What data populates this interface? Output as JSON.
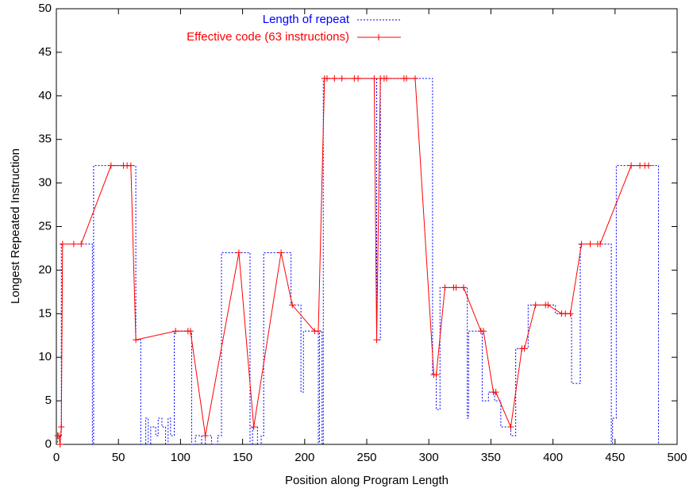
{
  "chart_data": {
    "type": "line",
    "xlabel": "Position along Program Length",
    "ylabel": "Longest Repeated Instruction",
    "xlim": [
      0,
      500
    ],
    "xticks": [
      0,
      50,
      100,
      150,
      200,
      250,
      300,
      350,
      400,
      450,
      500
    ],
    "ylim": [
      0,
      50
    ],
    "yticks": [
      0,
      5,
      10,
      15,
      20,
      25,
      30,
      35,
      40,
      45,
      50
    ],
    "grid": false,
    "legend": "top-center",
    "series": [
      {
        "name": "Length of repeat",
        "color": "#0000ff",
        "style": "dotted",
        "step": "post",
        "x": [
          0,
          1,
          3,
          4,
          28,
          29,
          30,
          64,
          68,
          72,
          74,
          76,
          80,
          82,
          85,
          88,
          90,
          92,
          95,
          109,
          112,
          117,
          120,
          125,
          130,
          133,
          156,
          158,
          162,
          165,
          167,
          189,
          197,
          199,
          211,
          212,
          214,
          215,
          258,
          261,
          303,
          306,
          309,
          331,
          332,
          343,
          348,
          353,
          358,
          366,
          370,
          380,
          402,
          415,
          422,
          447,
          448,
          451,
          485
        ],
        "values": [
          1,
          0,
          1,
          23,
          23,
          0,
          32,
          12,
          0,
          3,
          0,
          2,
          1,
          3,
          2,
          0,
          3,
          1,
          13,
          0,
          1,
          0,
          1,
          0,
          1,
          22,
          0,
          2,
          0,
          1,
          22,
          16,
          6,
          13,
          0,
          13,
          0,
          42,
          12,
          42,
          8,
          4,
          18,
          3,
          13,
          5,
          6,
          5,
          2,
          1,
          11,
          16,
          15,
          7,
          23,
          0,
          3,
          32,
          0
        ]
      },
      {
        "name": "Effective code (63 instructions)",
        "color": "#ff0000",
        "style": "linespoints",
        "x": [
          1,
          2,
          3,
          4,
          5,
          14,
          20,
          44,
          54,
          57,
          60,
          64,
          96,
          106,
          108,
          120,
          147,
          159,
          181,
          190,
          208,
          211,
          216,
          218,
          224,
          230,
          240,
          243,
          256,
          258,
          261,
          264,
          266,
          280,
          282,
          289,
          304,
          306,
          313,
          320,
          322,
          328,
          342,
          344,
          352,
          354,
          366,
          375,
          377,
          386,
          394,
          396,
          407,
          410,
          414,
          423,
          430,
          436,
          438,
          463,
          470,
          474,
          477
        ],
        "values": [
          1,
          1,
          0,
          2,
          23,
          23,
          23,
          32,
          32,
          32,
          32,
          12,
          13,
          13,
          13,
          1,
          22,
          2,
          22,
          16,
          13,
          13,
          42,
          42,
          42,
          42,
          42,
          42,
          42,
          12,
          42,
          42,
          42,
          42,
          42,
          42,
          8,
          8,
          18,
          18,
          18,
          18,
          13,
          13,
          6,
          6,
          2,
          11,
          11,
          16,
          16,
          16,
          15,
          15,
          15,
          23,
          23,
          23,
          23,
          32,
          32,
          32,
          32
        ]
      }
    ]
  }
}
